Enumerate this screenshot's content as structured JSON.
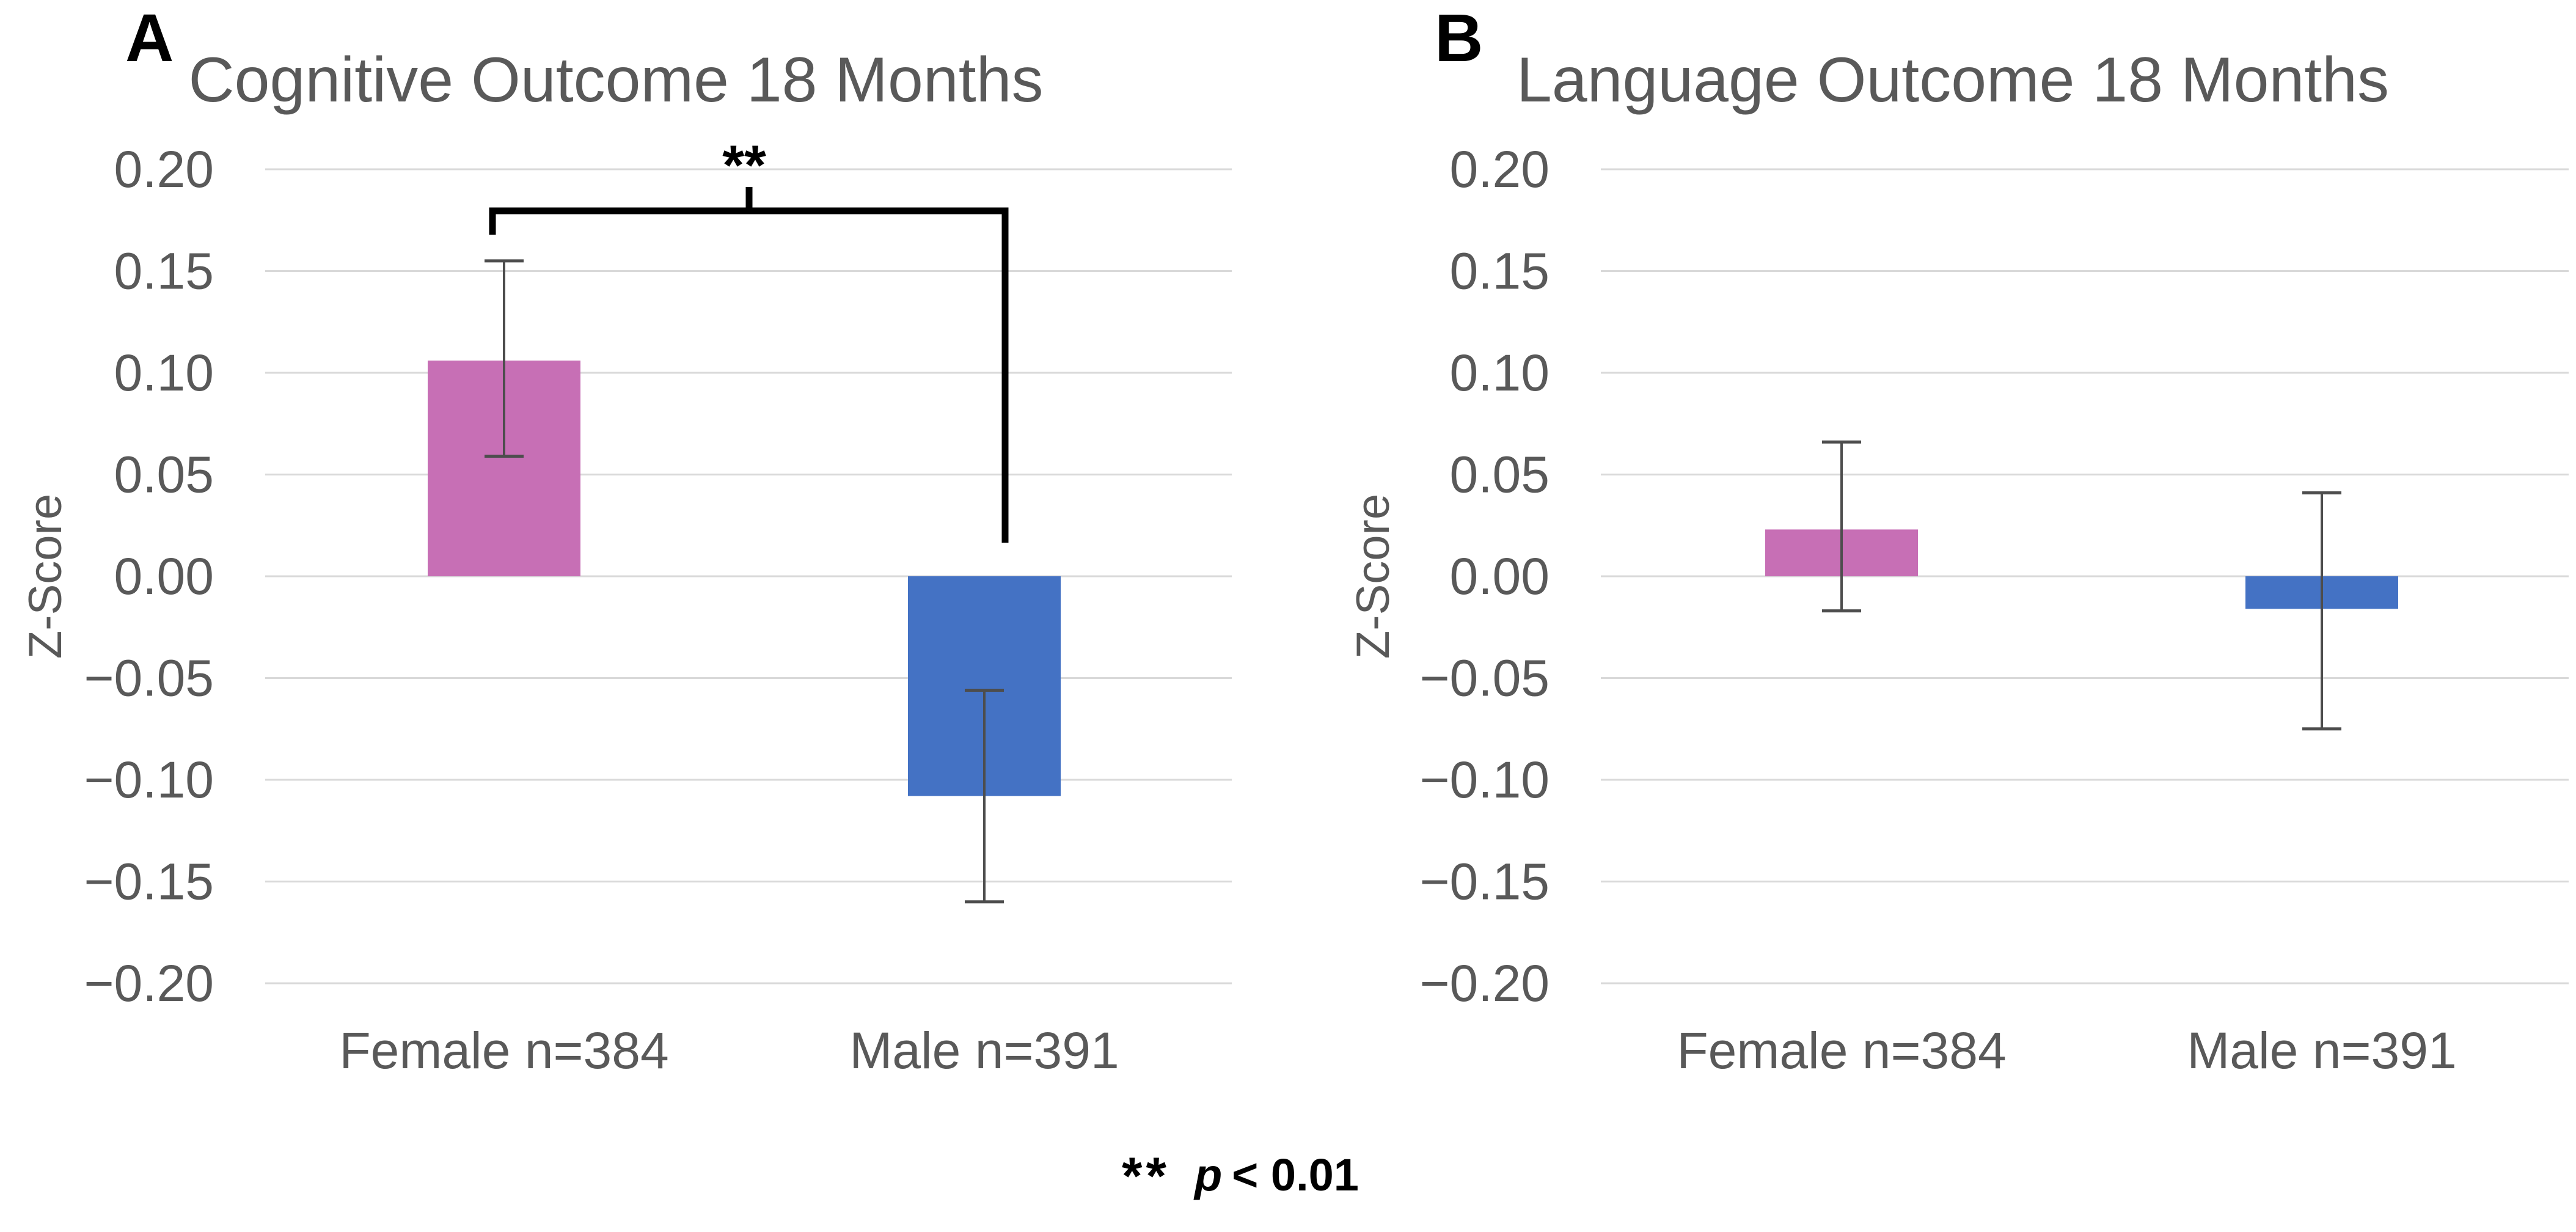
{
  "figure": {
    "background": "#FFFFFF",
    "footnote": {
      "marker": "**",
      "p": "p",
      "rest": "< 0.01"
    }
  },
  "style": {
    "grid_color": "#D9D9D9",
    "axis_text_color": "#595959",
    "title_color": "#595959",
    "error_bar_color": "#4d4d4d",
    "bracket_color": "#000000"
  },
  "chart_data": [
    {
      "type": "bar",
      "panel": "A",
      "title": "Cognitive Outcome 18 Months",
      "ylabel": "Z-Score",
      "ylim": [
        -0.2,
        0.2
      ],
      "ytick_labels": [
        "0.20",
        "0.15",
        "0.10",
        "0.05",
        "0.00",
        "−0.05",
        "−0.10",
        "−0.15",
        "−0.20"
      ],
      "ytick_values": [
        0.2,
        0.15,
        0.1,
        0.05,
        0.0,
        -0.05,
        -0.1,
        -0.15,
        -0.2
      ],
      "grid": true,
      "legend": "none",
      "categories": [
        "Female n=384",
        "Male n=391"
      ],
      "values": [
        0.106,
        -0.108
      ],
      "error_high": [
        0.155,
        -0.056
      ],
      "error_low": [
        0.059,
        -0.16
      ],
      "bar_colors": [
        "#C76FB5",
        "#4472C4"
      ],
      "significance": {
        "label": "**",
        "note": "p < 0.01",
        "between": [
          "Female n=384",
          "Male n=391"
        ]
      }
    },
    {
      "type": "bar",
      "panel": "B",
      "title": "Language Outcome 18 Months",
      "ylabel": "Z-Score",
      "ylim": [
        -0.2,
        0.2
      ],
      "ytick_labels": [
        "0.20",
        "0.15",
        "0.10",
        "0.05",
        "0.00",
        "−0.05",
        "−0.10",
        "−0.15",
        "−0.20"
      ],
      "ytick_values": [
        0.2,
        0.15,
        0.1,
        0.05,
        0.0,
        -0.05,
        -0.1,
        -0.15,
        -0.2
      ],
      "grid": true,
      "legend": "none",
      "categories": [
        "Female n=384",
        "Male n=391"
      ],
      "values": [
        0.023,
        -0.016
      ],
      "error_high": [
        0.066,
        0.041
      ],
      "error_low": [
        -0.017,
        -0.075
      ],
      "bar_colors": [
        "#C76FB5",
        "#4472C4"
      ]
    }
  ]
}
